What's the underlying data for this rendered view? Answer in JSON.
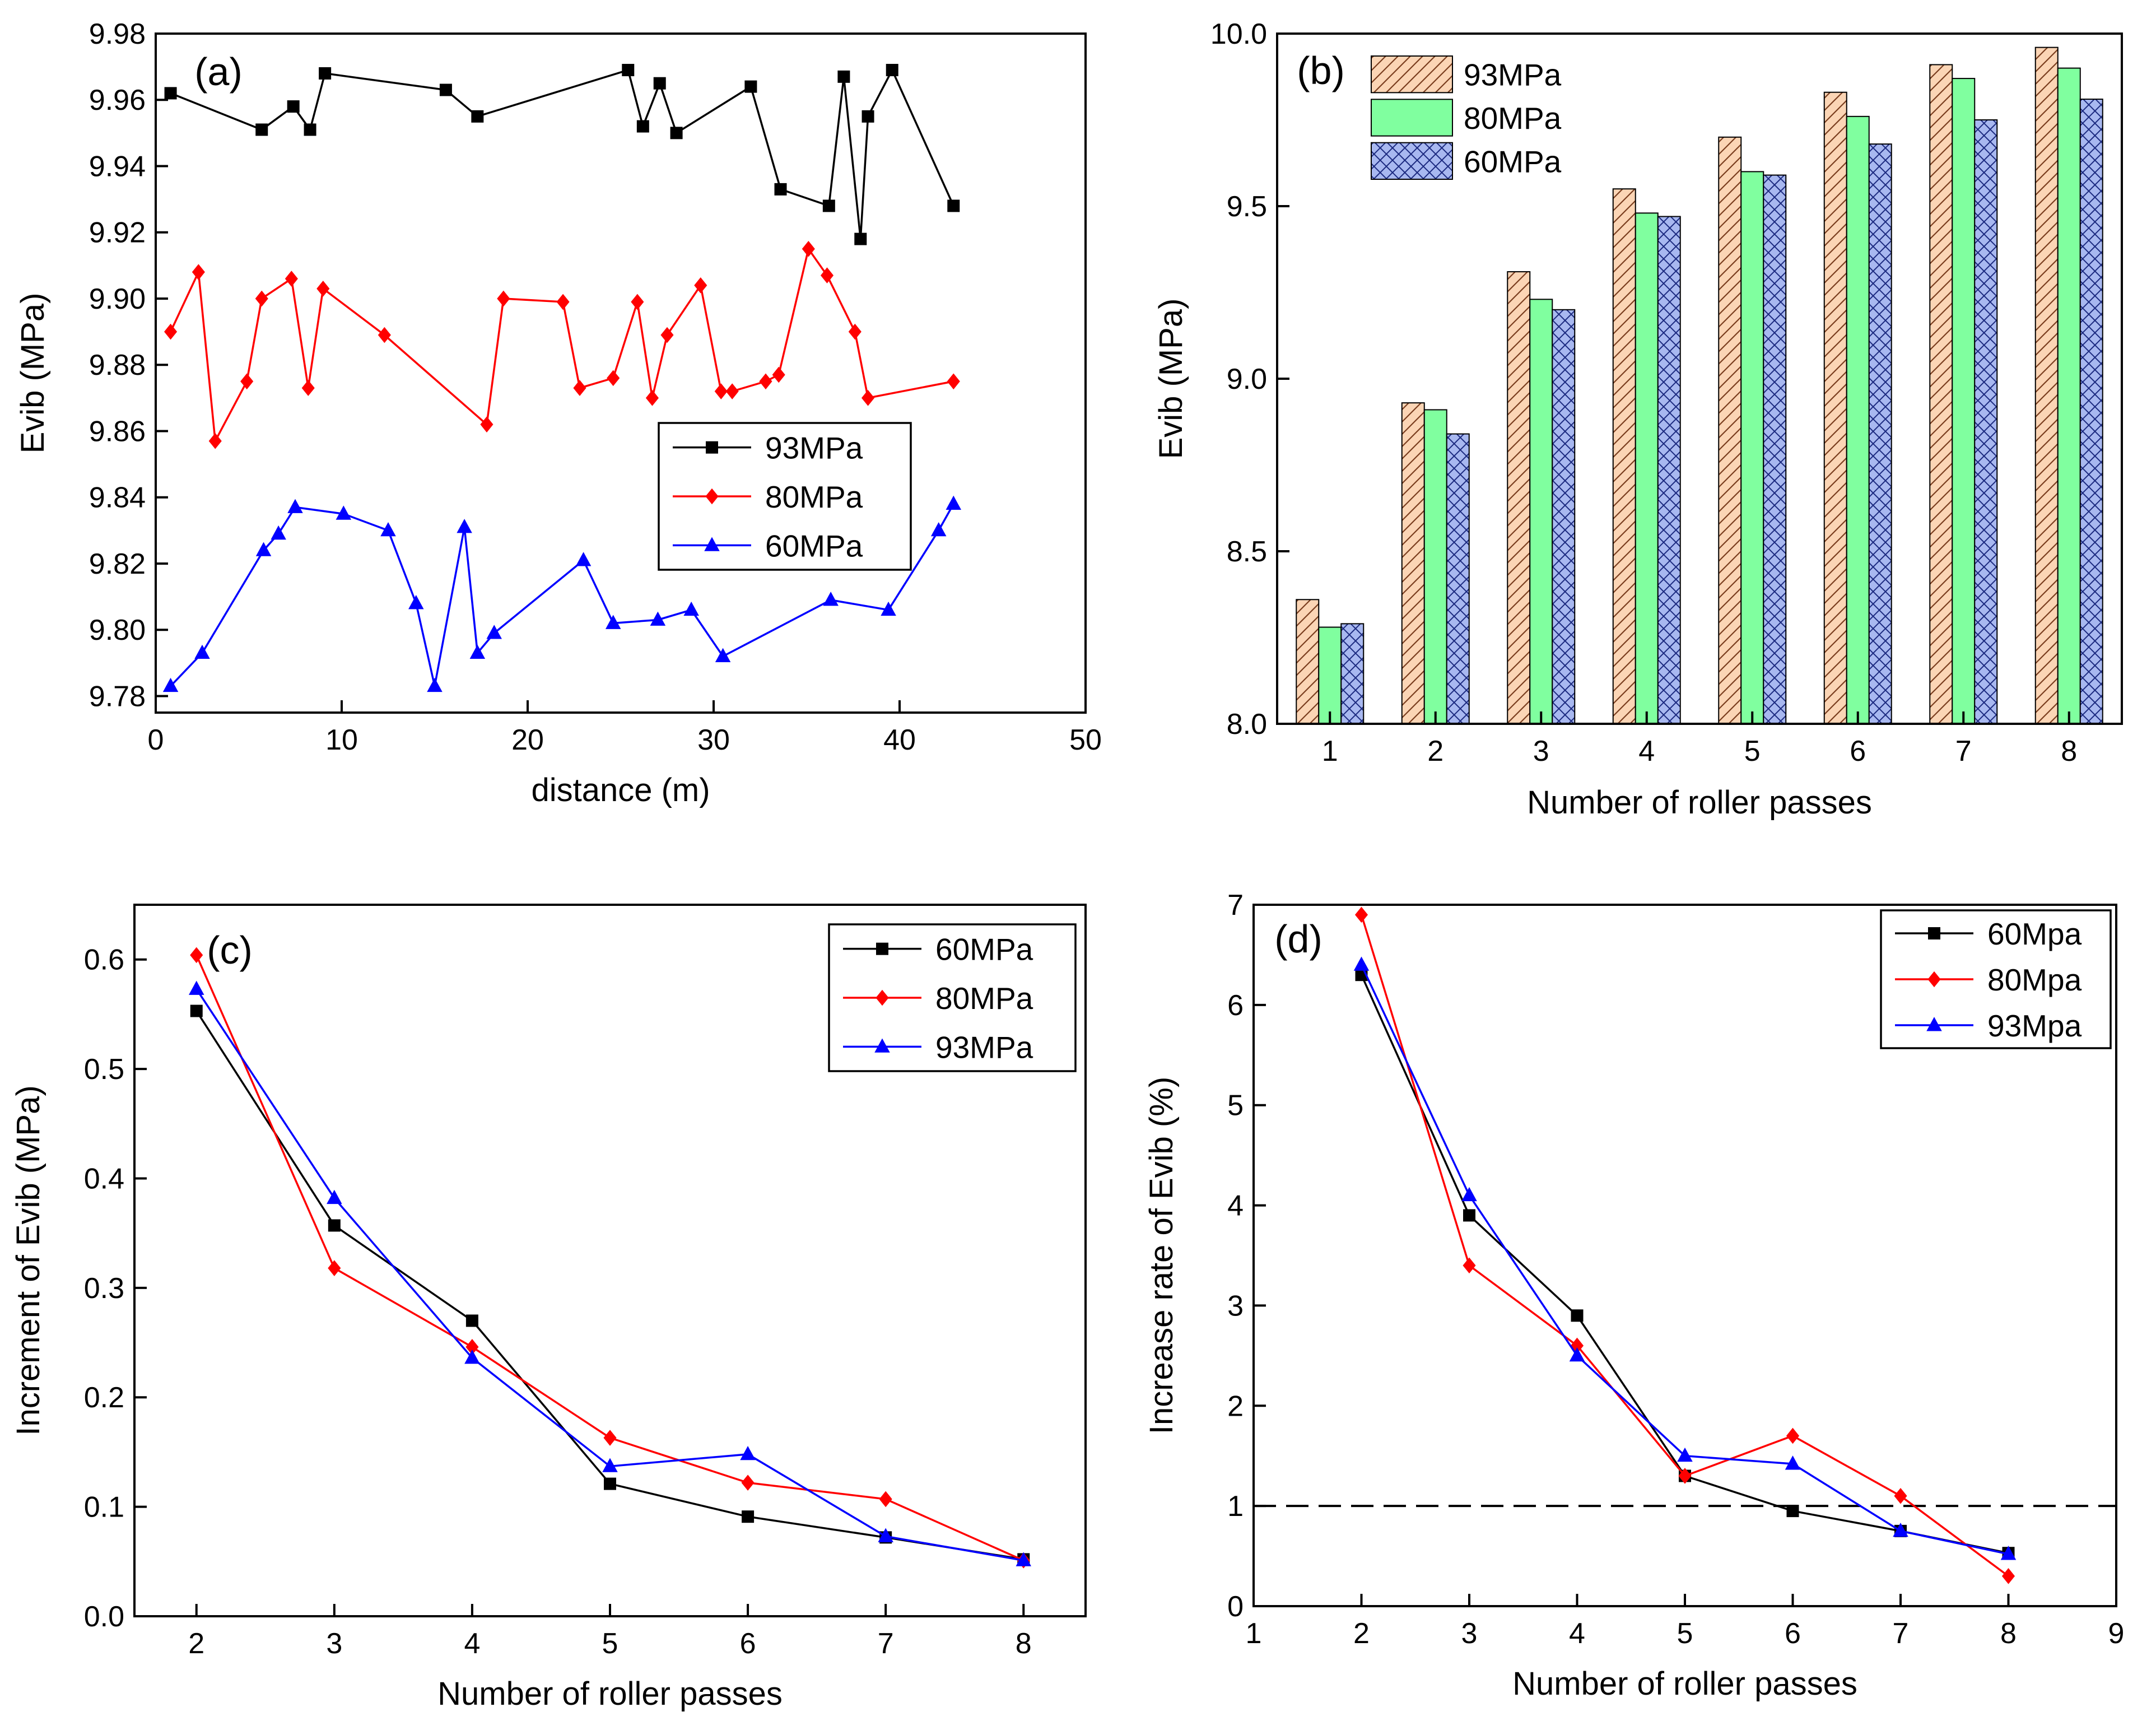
{
  "chart_data": [
    {
      "id": "a",
      "panel_label": "(a)",
      "type": "line",
      "xlabel": "distance (m)",
      "ylabel": "Evib (MPa)",
      "xlim": [
        0,
        50
      ],
      "ylim": [
        9.775,
        9.98
      ],
      "xticks": [
        0,
        10,
        20,
        30,
        40,
        50
      ],
      "yticks": [
        9.78,
        9.8,
        9.82,
        9.84,
        9.86,
        9.88,
        9.9,
        9.92,
        9.94,
        9.96,
        9.98
      ],
      "xtick_labels": [
        "0",
        "10",
        "20",
        "30",
        "40",
        "50"
      ],
      "ytick_labels": [
        "9.78",
        "9.80",
        "9.82",
        "9.84",
        "9.86",
        "9.88",
        "9.90",
        "9.92",
        "9.94",
        "9.96",
        "9.98"
      ],
      "legend_position": "center-right",
      "series": [
        {
          "name": "93MPa",
          "color": "#000000",
          "marker": "square",
          "x": [
            0.8,
            5.7,
            7.4,
            8.3,
            9.1,
            15.6,
            17.3,
            25.4,
            26.2,
            27.1,
            28.0,
            32.0,
            33.6,
            36.2,
            37.0,
            37.9,
            38.3,
            39.6,
            42.9
          ],
          "y": [
            9.962,
            9.951,
            9.958,
            9.951,
            9.968,
            9.963,
            9.955,
            9.969,
            9.952,
            9.965,
            9.95,
            9.964,
            9.933,
            9.928,
            9.967,
            9.918,
            9.955,
            9.969,
            9.928
          ]
        },
        {
          "name": "80MPa",
          "color": "#ff0000",
          "marker": "diamond",
          "x": [
            0.8,
            2.3,
            3.2,
            4.9,
            5.7,
            7.3,
            8.2,
            9.0,
            12.3,
            17.8,
            18.7,
            21.9,
            22.8,
            24.6,
            25.9,
            26.7,
            27.5,
            29.3,
            30.4,
            31.0,
            32.8,
            33.5,
            35.1,
            36.1,
            37.6,
            38.3,
            42.9
          ],
          "y": [
            9.89,
            9.908,
            9.857,
            9.875,
            9.9,
            9.906,
            9.873,
            9.903,
            9.889,
            9.862,
            9.9,
            9.899,
            9.873,
            9.876,
            9.899,
            9.87,
            9.889,
            9.904,
            9.872,
            9.872,
            9.875,
            9.877,
            9.915,
            9.907,
            9.89,
            9.87,
            9.875
          ]
        },
        {
          "name": "60MPa",
          "color": "#0000ff",
          "marker": "triangle",
          "x": [
            0.8,
            2.5,
            5.8,
            6.6,
            7.5,
            10.1,
            12.5,
            14.0,
            15.0,
            16.6,
            17.3,
            18.2,
            23.0,
            24.6,
            27.0,
            28.8,
            30.5,
            36.3,
            39.4,
            42.1,
            42.9
          ],
          "y": [
            9.783,
            9.793,
            9.824,
            9.829,
            9.837,
            9.835,
            9.83,
            9.808,
            9.783,
            9.831,
            9.793,
            9.799,
            9.821,
            9.802,
            9.803,
            9.806,
            9.792,
            9.809,
            9.806,
            9.83,
            9.838
          ]
        }
      ]
    },
    {
      "id": "b",
      "panel_label": "(b)",
      "type": "bar",
      "xlabel": "Number of roller passes",
      "ylabel": "Evib (MPa)",
      "ylim": [
        8.0,
        10.0
      ],
      "categories": [
        "1",
        "2",
        "3",
        "4",
        "5",
        "6",
        "7",
        "8"
      ],
      "yticks": [
        8.0,
        8.5,
        9.0,
        9.5,
        10.0
      ],
      "ytick_labels": [
        "8.0",
        "8.5",
        "9.0",
        "9.5",
        "10.0"
      ],
      "legend_position": "top-left",
      "series": [
        {
          "name": "93MPa",
          "color": "#fbd5b5",
          "pattern": "hatch",
          "values": [
            8.36,
            8.93,
            9.31,
            9.55,
            9.7,
            9.83,
            9.91,
            9.96
          ]
        },
        {
          "name": "80MPa",
          "color": "#80ff9f",
          "pattern": "solid",
          "values": [
            8.28,
            8.91,
            9.23,
            9.48,
            9.6,
            9.76,
            9.87,
            9.9
          ]
        },
        {
          "name": "60MPa",
          "color": "#a8b8f0",
          "pattern": "crosshatch",
          "values": [
            8.29,
            8.84,
            9.2,
            9.47,
            9.59,
            9.68,
            9.75,
            9.81
          ]
        }
      ]
    },
    {
      "id": "c",
      "panel_label": "(c)",
      "type": "line",
      "xlabel": "Number of roller passes",
      "ylabel": "Increment of Evib (MPa)",
      "xlim": [
        1.55,
        8.45
      ],
      "ylim": [
        0.0,
        0.65
      ],
      "xticks": [
        2,
        3,
        4,
        5,
        6,
        7,
        8
      ],
      "yticks": [
        0.0,
        0.1,
        0.2,
        0.3,
        0.4,
        0.5,
        0.6
      ],
      "xtick_labels": [
        "2",
        "3",
        "4",
        "5",
        "6",
        "7",
        "8"
      ],
      "ytick_labels": [
        "0.0",
        "0.1",
        "0.2",
        "0.3",
        "0.4",
        "0.5",
        "0.6"
      ],
      "legend_position": "top-right",
      "series": [
        {
          "name": "60MPa",
          "color": "#000000",
          "marker": "square",
          "x": [
            2,
            3,
            4,
            5,
            6,
            7,
            8
          ],
          "y": [
            0.553,
            0.357,
            0.27,
            0.121,
            0.091,
            0.072,
            0.052
          ]
        },
        {
          "name": "80MPa",
          "color": "#ff0000",
          "marker": "diamond",
          "x": [
            2,
            3,
            4,
            5,
            6,
            7,
            8
          ],
          "y": [
            0.604,
            0.318,
            0.246,
            0.163,
            0.122,
            0.107,
            0.051
          ]
        },
        {
          "name": "93MPa",
          "color": "#0000ff",
          "marker": "triangle",
          "x": [
            2,
            3,
            4,
            5,
            6,
            7,
            8
          ],
          "y": [
            0.573,
            0.382,
            0.236,
            0.137,
            0.148,
            0.073,
            0.051
          ]
        }
      ]
    },
    {
      "id": "d",
      "panel_label": "(d)",
      "type": "line",
      "xlabel": "Number of roller passes",
      "ylabel": "Increase rate of Evib (%)",
      "xlim": [
        1,
        9
      ],
      "ylim": [
        0,
        7
      ],
      "xticks": [
        1,
        2,
        3,
        4,
        5,
        6,
        7,
        8,
        9
      ],
      "yticks": [
        0,
        1,
        2,
        3,
        4,
        5,
        6,
        7
      ],
      "xtick_labels": [
        "1",
        "2",
        "3",
        "4",
        "5",
        "6",
        "7",
        "8",
        "9"
      ],
      "ytick_labels": [
        "0",
        "1",
        "2",
        "3",
        "4",
        "5",
        "6",
        "7"
      ],
      "legend_position": "top-right",
      "reference_line_y": 1,
      "series": [
        {
          "name": "60Mpa",
          "color": "#000000",
          "marker": "square",
          "x": [
            2,
            3,
            4,
            5,
            6,
            7,
            8
          ],
          "y": [
            6.3,
            3.9,
            2.9,
            1.3,
            0.95,
            0.75,
            0.53
          ]
        },
        {
          "name": "80Mpa",
          "color": "#ff0000",
          "marker": "diamond",
          "x": [
            2,
            3,
            4,
            5,
            6,
            7,
            8
          ],
          "y": [
            6.9,
            3.4,
            2.6,
            1.3,
            1.7,
            1.1,
            0.3
          ]
        },
        {
          "name": "93Mpa",
          "color": "#0000ff",
          "marker": "triangle",
          "x": [
            2,
            3,
            4,
            5,
            6,
            7,
            8
          ],
          "y": [
            6.4,
            4.1,
            2.5,
            1.5,
            1.42,
            0.75,
            0.52
          ]
        }
      ]
    }
  ]
}
